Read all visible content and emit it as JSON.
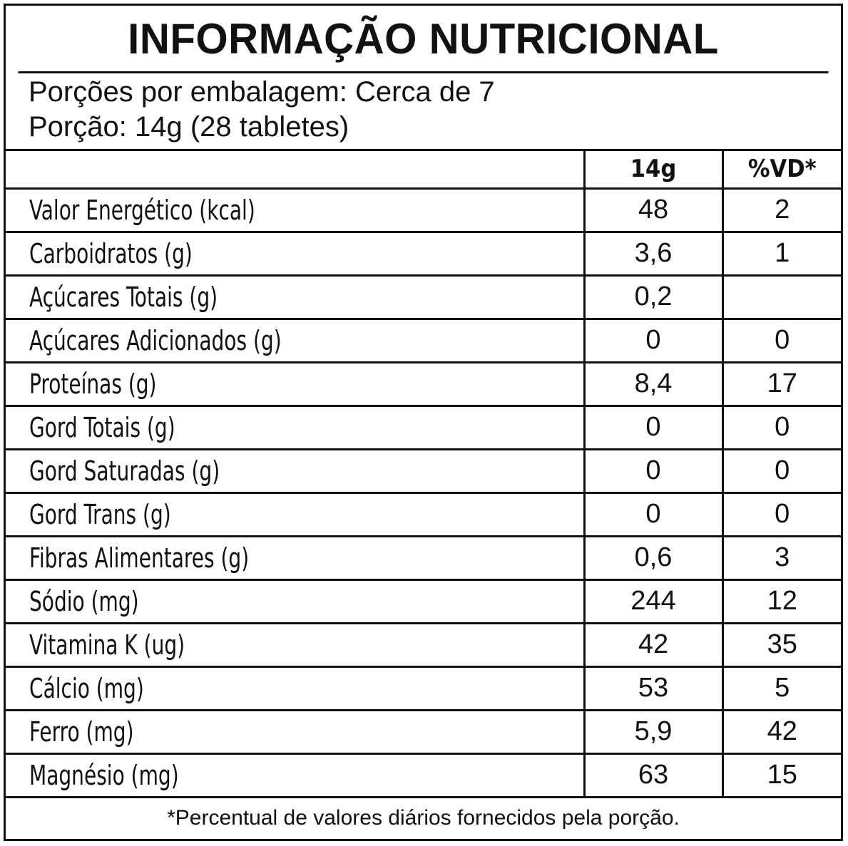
{
  "title": "INFORMAÇÃO NUTRICIONAL",
  "serving": {
    "per_package": "Porções por embalagem: Cerca de 7",
    "portion": "Porção: 14g (28 tabletes)"
  },
  "columns": {
    "name": "",
    "amount": "14g",
    "dv": "%VD*"
  },
  "rows": [
    {
      "name": "Valor Energético (kcal)",
      "amount": "48",
      "dv": "2"
    },
    {
      "name": "Carboidratos (g)",
      "amount": "3,6",
      "dv": "1"
    },
    {
      "name": "Açúcares Totais (g)",
      "amount": "0,2",
      "dv": ""
    },
    {
      "name": "Açúcares Adicionados (g)",
      "amount": "0",
      "dv": "0"
    },
    {
      "name": "Proteínas (g)",
      "amount": "8,4",
      "dv": "17"
    },
    {
      "name": "Gord Totais (g)",
      "amount": "0",
      "dv": "0"
    },
    {
      "name": "Gord Saturadas (g)",
      "amount": "0",
      "dv": "0"
    },
    {
      "name": "Gord Trans (g)",
      "amount": "0",
      "dv": "0"
    },
    {
      "name": "Fibras Alimentares (g)",
      "amount": "0,6",
      "dv": "3"
    },
    {
      "name": "Sódio (mg)",
      "amount": "244",
      "dv": "12"
    },
    {
      "name": "Vitamina K (ug)",
      "amount": "42",
      "dv": "35"
    },
    {
      "name": "Cálcio (mg)",
      "amount": "53",
      "dv": "5"
    },
    {
      "name": "Ferro (mg)",
      "amount": "5,9",
      "dv": "42"
    },
    {
      "name": "Magnésio (mg)",
      "amount": "63",
      "dv": "15"
    }
  ],
  "footnote": "*Percentual de valores diários fornecidos pela porção.",
  "colors": {
    "border": "#111111",
    "background": "#ffffff",
    "text": "#111111"
  }
}
